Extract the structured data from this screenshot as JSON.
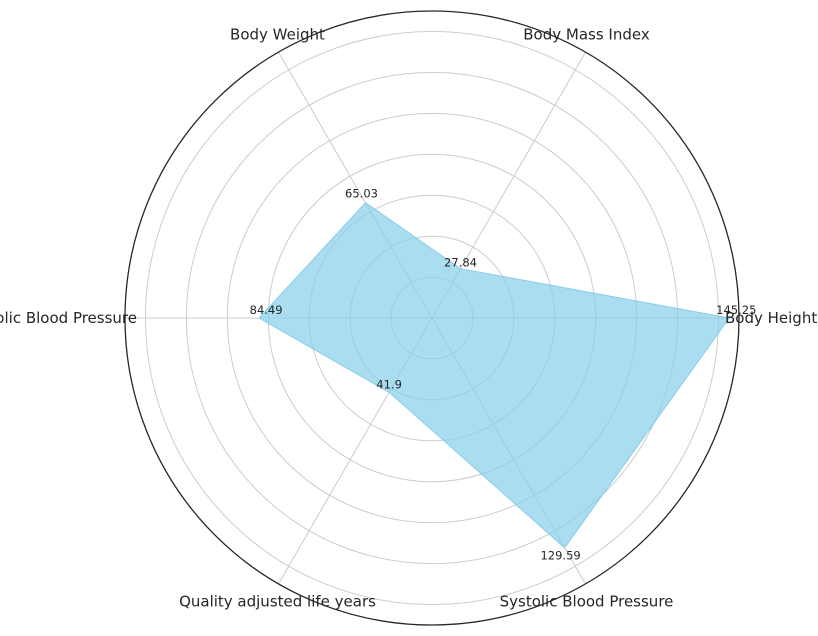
{
  "chart_data": {
    "type": "radar",
    "categories": [
      "Body Height",
      "Body Mass Index",
      "Body Weight",
      "Diastolic Blood Pressure",
      "Quality adjusted life years",
      "Systolic Blood Pressure"
    ],
    "series": [
      {
        "values": [
          145.25,
          27.84,
          65.03,
          84.49,
          41.9,
          129.59
        ],
        "labels": [
          "145.25",
          "27.84",
          "65.03",
          "84.49",
          "41.9",
          "129.59"
        ],
        "color": "#87ceeb"
      }
    ],
    "rlim": [
      0,
      150
    ],
    "ring_step": 20,
    "grid": true,
    "tick_labels_shown": false
  }
}
